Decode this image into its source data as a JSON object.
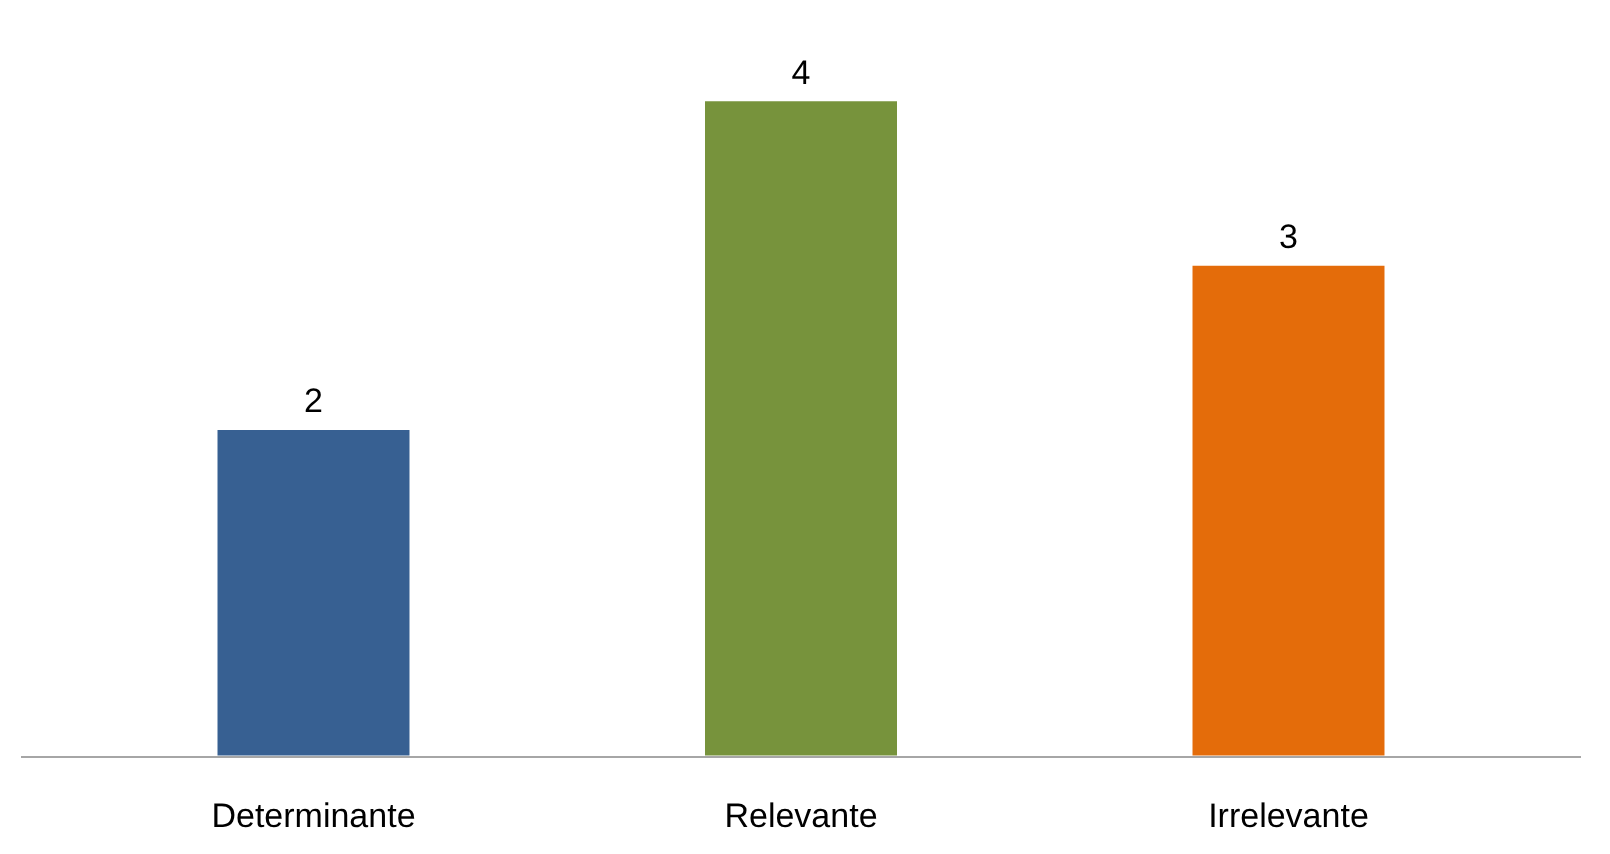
{
  "chart_data": {
    "type": "bar",
    "categories": [
      "Determinante",
      "Relevante",
      "Irrelevante"
    ],
    "values": [
      2,
      4,
      3
    ],
    "colors": [
      "#376092",
      "#77933c",
      "#e46c0a"
    ],
    "data_labels": true,
    "grid": false
  }
}
